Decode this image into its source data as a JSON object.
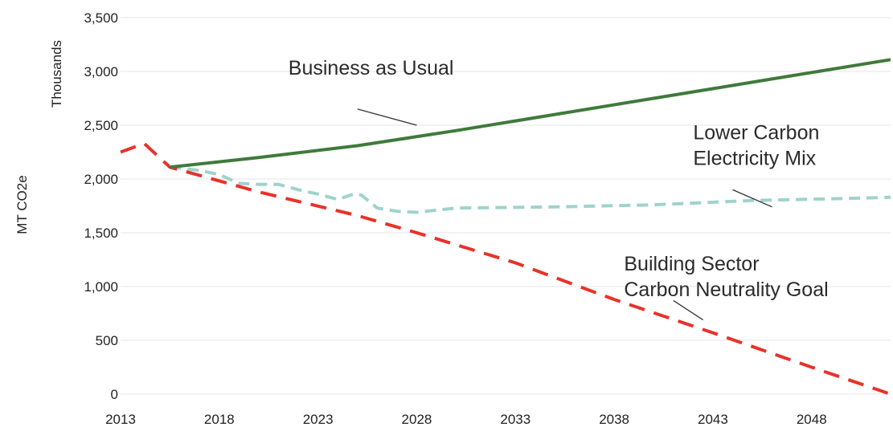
{
  "chart_data": {
    "type": "line",
    "ylabel": "MT CO2e",
    "ylabel_units": "Thousands",
    "ylim": [
      0,
      3500
    ],
    "xlim": [
      2013,
      2052
    ],
    "yticks": [
      0,
      500,
      1000,
      1500,
      2000,
      2500,
      3000,
      3500
    ],
    "ytick_labels": [
      "0",
      "500",
      "1,000",
      "1,500",
      "2,000",
      "2,500",
      "3,000",
      "3,500"
    ],
    "xticks": [
      2013,
      2018,
      2023,
      2028,
      2033,
      2038,
      2043,
      2048
    ],
    "xtick_labels": [
      "2013",
      "2018",
      "2023",
      "2028",
      "2033",
      "2038",
      "2043",
      "2048"
    ],
    "grid": true,
    "legend": "none",
    "series": [
      {
        "name": "Business as Usual",
        "color": "#3f7a3b",
        "style": "solid",
        "points": [
          [
            2015.5,
            2110
          ],
          [
            2020,
            2200
          ],
          [
            2025,
            2310
          ],
          [
            2030,
            2450
          ],
          [
            2035,
            2600
          ],
          [
            2040,
            2750
          ],
          [
            2045,
            2900
          ],
          [
            2050,
            3050
          ],
          [
            2052,
            3110
          ]
        ]
      },
      {
        "name": "Lower Carbon Electricity Mix",
        "color": "#9fd3cc",
        "style": "dashed",
        "points": [
          [
            2015.5,
            2110
          ],
          [
            2017,
            2080
          ],
          [
            2018,
            2040
          ],
          [
            2019,
            1960
          ],
          [
            2020,
            1950
          ],
          [
            2021,
            1950
          ],
          [
            2022,
            1900
          ],
          [
            2023,
            1860
          ],
          [
            2024,
            1810
          ],
          [
            2024.8,
            1860
          ],
          [
            2025.2,
            1850
          ],
          [
            2026,
            1730
          ],
          [
            2027,
            1700
          ],
          [
            2028,
            1690
          ],
          [
            2030,
            1730
          ],
          [
            2035,
            1740
          ],
          [
            2040,
            1760
          ],
          [
            2045,
            1800
          ],
          [
            2050,
            1820
          ],
          [
            2052,
            1830
          ]
        ]
      },
      {
        "name": "Building Sector Carbon Neutrality Goal",
        "color": "#e8322a",
        "style": "dashed",
        "points": [
          [
            2013,
            2250
          ],
          [
            2014.2,
            2330
          ],
          [
            2015.5,
            2110
          ],
          [
            2020,
            1880
          ],
          [
            2025,
            1660
          ],
          [
            2028,
            1500
          ],
          [
            2033,
            1220
          ],
          [
            2038,
            880
          ],
          [
            2043,
            570
          ],
          [
            2048,
            250
          ],
          [
            2052,
            0
          ]
        ]
      }
    ],
    "annotations": [
      {
        "series": 0,
        "lines": [
          "Business as Usual"
        ],
        "leader": [
          2025,
          2650,
          2028,
          2500
        ]
      },
      {
        "series": 1,
        "lines": [
          "Lower Carbon",
          "Electricity Mix"
        ],
        "leader": [
          2044,
          1900,
          2046,
          1740
        ]
      },
      {
        "series": 2,
        "lines": [
          "Building Sector",
          "Carbon Neutrality Goal"
        ],
        "leader": [
          2041,
          870,
          2042.5,
          690
        ]
      }
    ],
    "annotation_anchors": [
      {
        "x": 2021.5,
        "y": 2970
      },
      {
        "x": 2042,
        "y": 2370
      },
      {
        "x": 2038.5,
        "y": 1150
      }
    ]
  }
}
